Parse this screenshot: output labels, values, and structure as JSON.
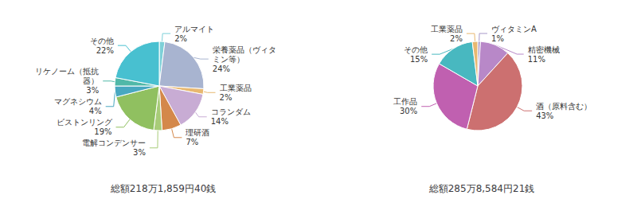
{
  "chart_data": [
    {
      "type": "pie",
      "subtitle": "総額218万1,859円40銭",
      "categories": [
        "アルマイト",
        "栄養薬品（ヴィタミン等）",
        "工業薬品",
        "コランダム",
        "理研酒",
        "電解コンデンサー",
        "ビストンリング",
        "マグネシウム",
        "リケノーム（抵抗器）",
        "その他"
      ],
      "values": [
        2,
        24,
        2,
        14,
        7,
        3,
        19,
        4,
        3,
        22
      ],
      "value_labels": [
        "2%",
        "24%",
        "2%",
        "14%",
        "7%",
        "3%",
        "19%",
        "4%",
        "3%",
        "22%"
      ],
      "colors": [
        "#7dd0d8",
        "#a8b4d0",
        "#e8b870",
        "#c8acd4",
        "#d4884a",
        "#a8cc78",
        "#90c060",
        "#48a8c0",
        "#50b8a8",
        "#48c0d0"
      ]
    },
    {
      "type": "pie",
      "subtitle": "総額285万8,584円21銭",
      "categories": [
        "ヴィタミンA",
        "精密機械",
        "酒（原料含む）",
        "工作品",
        "その他",
        "工業薬品"
      ],
      "values": [
        1,
        11,
        43,
        30,
        15,
        2
      ],
      "value_labels": [
        "1%",
        "11%",
        "43%",
        "30%",
        "15%",
        "2%"
      ],
      "colors": [
        "#a898c8",
        "#b888c8",
        "#cc7070",
        "#c060b0",
        "#48b8c0",
        "#e8b870"
      ]
    }
  ]
}
